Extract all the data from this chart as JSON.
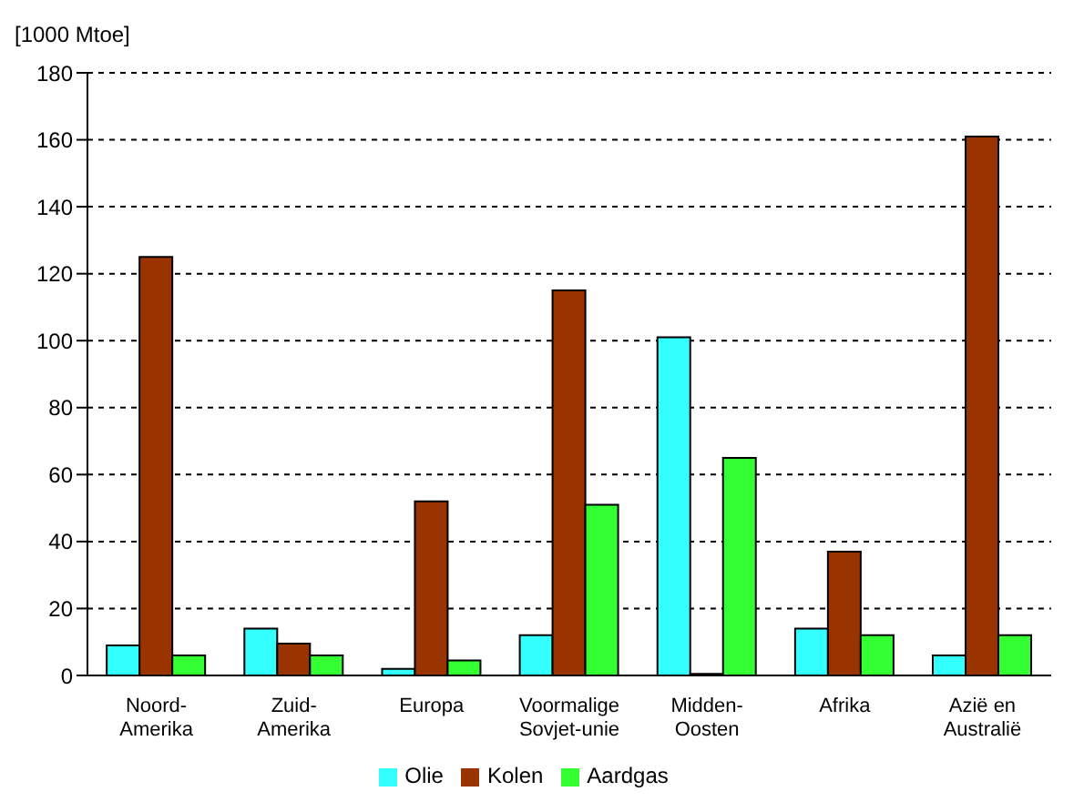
{
  "chart_data": {
    "type": "bar",
    "ylabel": "[1000 Mtoe]",
    "categories": [
      "Noord-\nAmerika",
      "Zuid-\nAmerika",
      "Europa",
      "Voormalige\nSovjet-unie",
      "Midden-\nOosten",
      "Afrika",
      "Azië en\nAustralië"
    ],
    "series": [
      {
        "name": "Olie",
        "color": "#33ffff",
        "values": [
          9,
          14,
          2,
          12,
          101,
          14,
          6
        ]
      },
      {
        "name": "Kolen",
        "color": "#993300",
        "values": [
          125,
          9.5,
          52,
          115,
          0.5,
          37,
          161
        ]
      },
      {
        "name": "Aardgas",
        "color": "#33ff33",
        "values": [
          6,
          6,
          4.5,
          51,
          65,
          12,
          12
        ]
      }
    ],
    "ylim": [
      0,
      180
    ],
    "yticks": [
      0,
      20,
      40,
      60,
      80,
      100,
      120,
      140,
      160,
      180
    ],
    "grid": "y",
    "legend": "bottom"
  }
}
